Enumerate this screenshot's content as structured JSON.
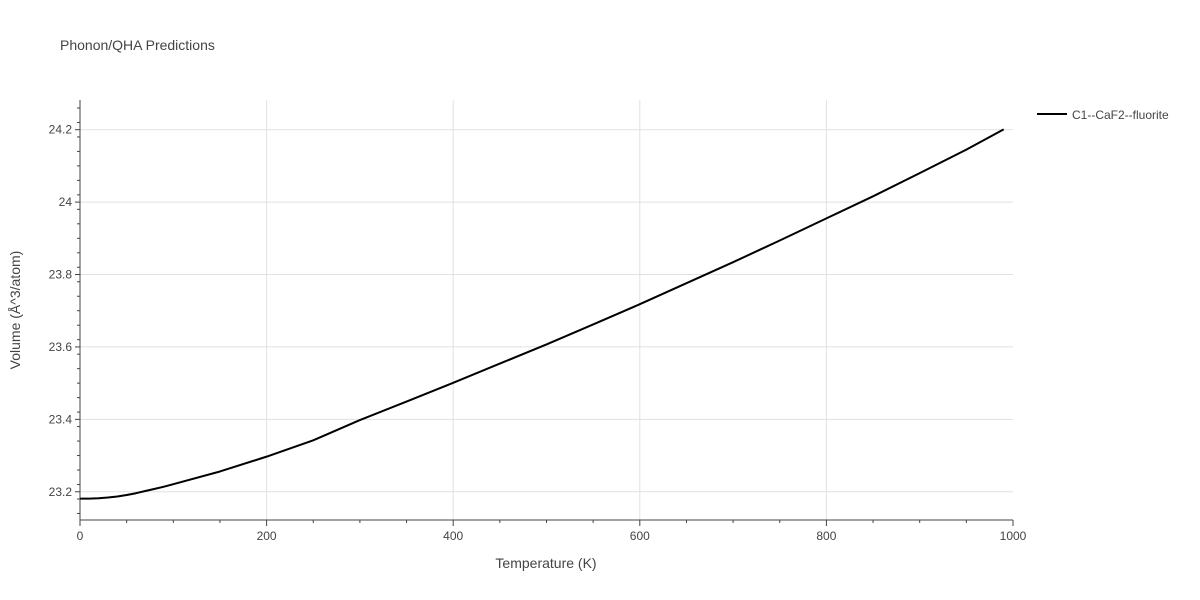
{
  "chart_data": {
    "type": "line",
    "title": "Phonon/QHA Predictions",
    "xlabel": "Temperature (K)",
    "ylabel": "Volume (Å^3/atom)",
    "xlim": [
      0,
      1000
    ],
    "ylim": [
      23.122,
      24.282
    ],
    "xticks": [
      0,
      200,
      400,
      600,
      800,
      1000
    ],
    "xtick_labels": [
      "0",
      "200",
      "400",
      "600",
      "800",
      "1000"
    ],
    "yticks": [
      23.2,
      23.4,
      23.6,
      23.8,
      24.0,
      24.2
    ],
    "ytick_labels": [
      "23.2",
      "23.4",
      "23.6",
      "23.8",
      "24",
      "24.2"
    ],
    "grid": true,
    "legend_position": "top-right",
    "series": [
      {
        "name": "C1--CaF2--fluorite",
        "color": "#000000",
        "x": [
          0,
          10,
          20,
          30,
          40,
          50,
          60,
          70,
          80,
          90,
          100,
          150,
          200,
          250,
          300,
          350,
          400,
          450,
          500,
          550,
          600,
          650,
          700,
          750,
          800,
          850,
          900,
          950,
          990
        ],
        "y": [
          23.181,
          23.181,
          23.182,
          23.184,
          23.187,
          23.191,
          23.196,
          23.202,
          23.208,
          23.214,
          23.221,
          23.256,
          23.297,
          23.342,
          23.398,
          23.449,
          23.501,
          23.554,
          23.607,
          23.662,
          23.718,
          23.776,
          23.834,
          23.894,
          23.955,
          24.016,
          24.08,
          24.145,
          24.201
        ]
      }
    ]
  }
}
